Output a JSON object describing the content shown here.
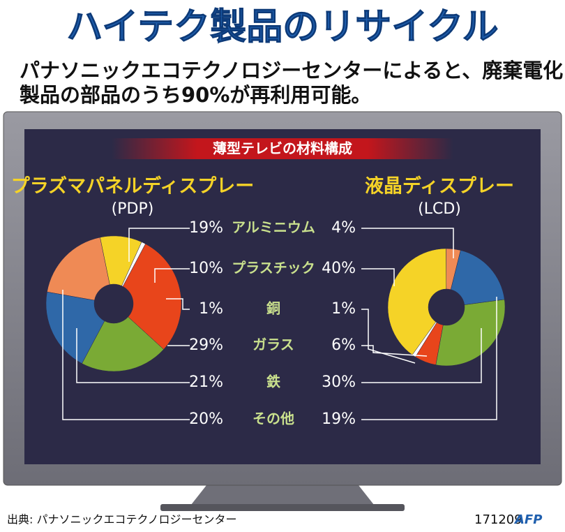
{
  "chart_data": {
    "type": "pie",
    "title": "ハイテク製品のリサイクル",
    "subtitle": [
      "パナソニックエコテクノロジーセンターによると、廃棄電化",
      "製品の部品のうち90%が再利用可能。"
    ],
    "section_title": "薄型テレビの材料構成",
    "categories": [
      "アルミニウム",
      "プラスチック",
      "銅",
      "ガラス",
      "鉄",
      "その他"
    ],
    "colors": [
      "#ef8a55",
      "#f5d327",
      "#ffffff",
      "#e8451b",
      "#7aaa35",
      "#2f68a8"
    ],
    "series": [
      {
        "name": "プラズマパネルディスプレー",
        "subtitle": "(PDP)",
        "values": [
          19,
          10,
          1,
          29,
          21,
          20
        ],
        "value_labels": [
          "19%",
          "10%",
          "1%",
          "29%",
          "21%",
          "20%"
        ]
      },
      {
        "name": "液晶ディスプレー",
        "subtitle": "(LCD)",
        "values": [
          4,
          40,
          1,
          6,
          30,
          19
        ],
        "value_labels": [
          "4%",
          "40%",
          "1%",
          "6%",
          "30%",
          "19%"
        ]
      }
    ],
    "source": "出典: パナソニックエコテクノロジーセンター",
    "code": "171209",
    "credit": "AFP"
  }
}
